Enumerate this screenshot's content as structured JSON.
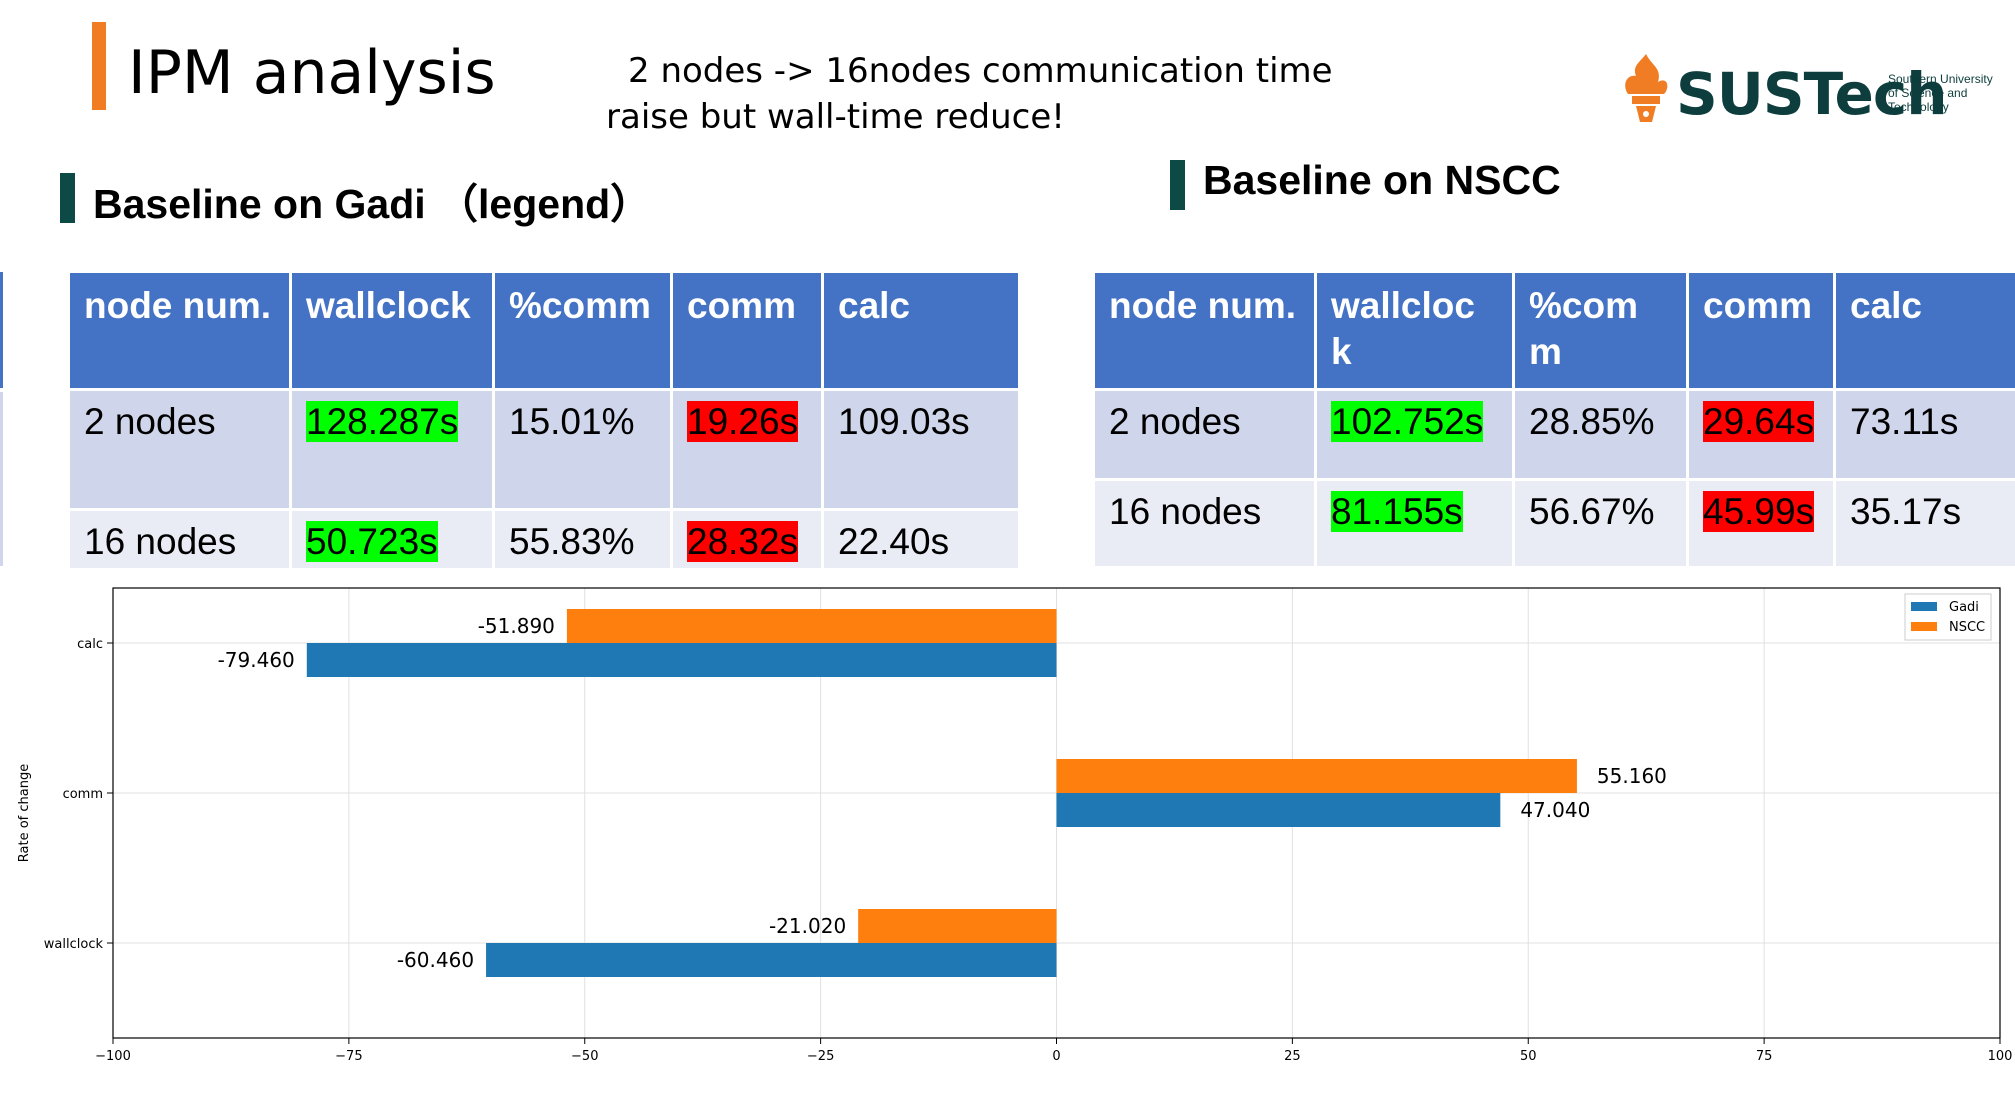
{
  "header": {
    "title": "IPM analysis",
    "subtitle_line1": "2 nodes -> 16nodes communication time",
    "subtitle_line2": "raise but wall-time reduce!"
  },
  "logo": {
    "name": "SUSTech",
    "sub_line1": "Southern University",
    "sub_line2": "of Science and",
    "sub_line3": "Technology"
  },
  "gadi": {
    "heading": "Baseline on Gadi （legend）",
    "columns": [
      "node num.",
      "wallclock",
      "%comm",
      "comm",
      "calc"
    ],
    "rows": [
      [
        "2 nodes",
        "128.287s",
        "15.01%",
        "19.26s",
        "109.03s"
      ],
      [
        "16 nodes",
        "50.723s",
        "55.83%",
        "28.32s",
        "22.40s"
      ]
    ]
  },
  "nscc": {
    "heading": "Baseline on NSCC",
    "columns": [
      "node num.",
      "wallcloc k",
      "%com m",
      "comm",
      "calc"
    ],
    "rows": [
      [
        "2 nodes",
        "102.752s",
        "28.85%",
        "29.64s",
        "73.11s"
      ],
      [
        "16 nodes",
        "81.155s",
        "56.67%",
        "45.99s",
        "35.17s"
      ]
    ]
  },
  "colors": {
    "accent_orange": "#f07d23",
    "table_header": "#4472c4",
    "gadi_series": "#1f77b4",
    "nscc_series": "#ff7f0e",
    "highlight_green": "#00ff00",
    "highlight_red": "#ff0000"
  },
  "chart_data": {
    "type": "bar",
    "orientation": "horizontal",
    "categories": [
      "calc",
      "comm",
      "wallclock"
    ],
    "series": [
      {
        "name": "Gadi",
        "values": [
          -79.46,
          47.04,
          -60.46
        ]
      },
      {
        "name": "NSCC",
        "values": [
          -51.89,
          55.16,
          -21.02
        ]
      }
    ],
    "data_labels": {
      "Gadi": [
        "-79.460",
        "47.040",
        "-60.460"
      ],
      "NSCC": [
        "-51.890",
        "55.160",
        "-21.020"
      ]
    },
    "ylabel": "Rate of change",
    "xlim": [
      -100,
      100
    ],
    "xticks": [
      "−100",
      "−75",
      "−50",
      "−25",
      "0",
      "25",
      "50",
      "75",
      "100"
    ],
    "grid": true,
    "legend_position": "top-right"
  }
}
